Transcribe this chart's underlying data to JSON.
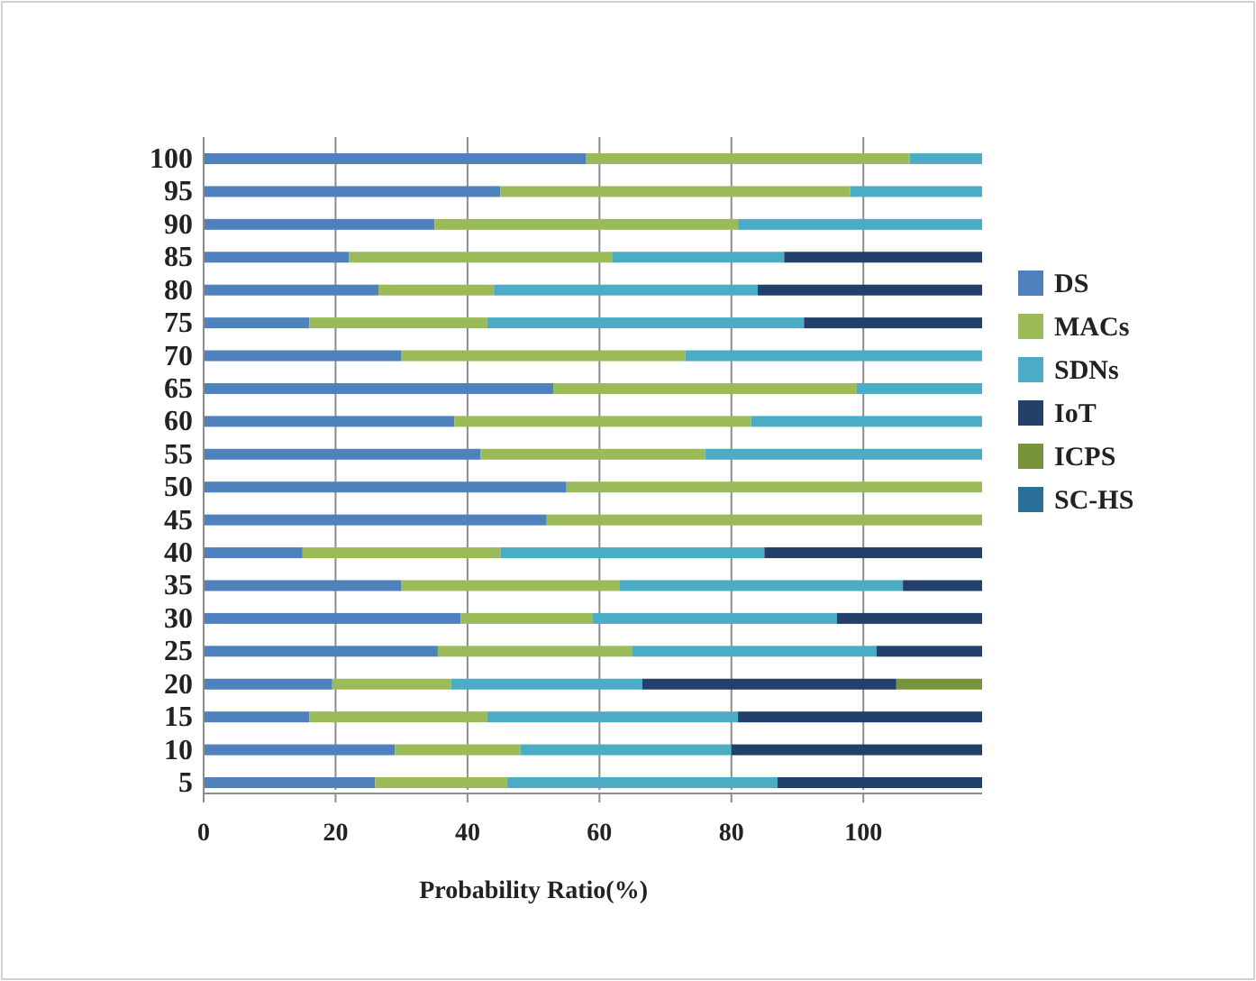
{
  "chart_data": {
    "type": "bar",
    "orientation": "horizontal",
    "stacked": true,
    "xlabel": "Probability Ratio(%)",
    "categories": [
      "100",
      "95",
      "90",
      "85",
      "80",
      "75",
      "70",
      "65",
      "60",
      "55",
      "50",
      "45",
      "40",
      "35",
      "30",
      "25",
      "20",
      "15",
      "10",
      "5"
    ],
    "xlim": [
      0,
      118
    ],
    "xticks": [
      0,
      20,
      40,
      60,
      80,
      100
    ],
    "grid": "x",
    "legend": "right",
    "series": [
      {
        "name": "DS",
        "color": "#4f81bd",
        "values": [
          58,
          45,
          35,
          22,
          26.5,
          16,
          30,
          53,
          38,
          42,
          55,
          52,
          15,
          30,
          39,
          35.5,
          19.5,
          16,
          29,
          26
        ]
      },
      {
        "name": "MACs",
        "color": "#9bbb59",
        "values": [
          49,
          53,
          46,
          40,
          17.5,
          27,
          43,
          46,
          45,
          34,
          63,
          66,
          30,
          33,
          20,
          29.5,
          18,
          27,
          19,
          20
        ]
      },
      {
        "name": "SDNs",
        "color": "#4bacc6",
        "values": [
          11,
          20,
          37,
          26,
          40,
          48,
          45,
          19,
          35,
          42,
          null,
          null,
          40,
          43,
          37,
          37,
          29,
          38,
          32,
          41
        ]
      },
      {
        "name": "IoT",
        "color": "#23406a",
        "values": [
          null,
          null,
          null,
          30,
          34,
          27,
          null,
          null,
          null,
          null,
          null,
          null,
          33,
          12,
          22,
          16,
          38.5,
          37,
          38,
          31
        ]
      },
      {
        "name": "ICPS",
        "color": "#77933c",
        "values": [
          null,
          null,
          null,
          null,
          null,
          null,
          null,
          null,
          null,
          null,
          null,
          null,
          null,
          null,
          null,
          null,
          13,
          null,
          null,
          null
        ]
      },
      {
        "name": "SC-HS",
        "color": "#2a6f97",
        "values": [
          null,
          null,
          null,
          null,
          null,
          null,
          null,
          null,
          null,
          null,
          null,
          null,
          null,
          null,
          null,
          null,
          null,
          null,
          null,
          null
        ]
      }
    ]
  }
}
